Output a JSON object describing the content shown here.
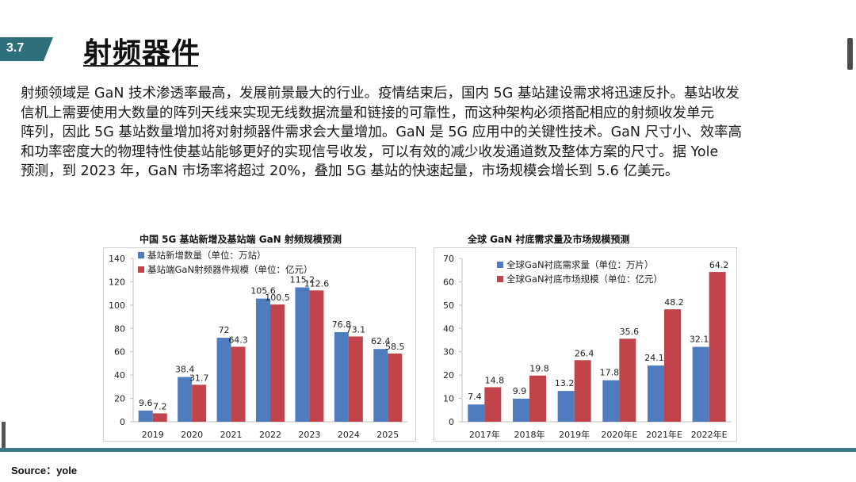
{
  "section_number": "3.7",
  "title": "射频器件",
  "paragraph": [
    "射频领域是 GaN 技术渗透率最高，发展前景最大的行业。疫情结束后，国内 5G 基站建设需求将迅速反扑。基站收发",
    "信机上需要使用大数量的阵列天线来实现无线数据流量和链接的可靠性，而这种架构必须搭配相应的射频收发单元",
    "阵列，因此 5G 基站数量增加将对射频器件需求会大量增加。GaN 是 5G 应用中的关键性技术。GaN 尺寸小、效率高",
    "和功率密度大的物理特性使基站能够更好的实现信号收发，可以有效的减少收发通道数及整体方案的尺寸。据 Yole",
    "预测，到 2023 年，GaN 市场率将超过 20%，叠加 5G 基站的快速起量，市场规模会增长到 5.6 亿美元。"
  ],
  "source": "Source：yole",
  "colors": {
    "blue": "#4f7bbf",
    "red": "#c0444a",
    "accent": "#2e6f7c"
  },
  "chart_data": [
    {
      "type": "bar",
      "title": "中国 5G 基站新增及基站端 GaN 射频规模预测",
      "categories": [
        "2019",
        "2020",
        "2021",
        "2022",
        "2023",
        "2024",
        "2025"
      ],
      "series": [
        {
          "name": "基站新增数量（单位：万站）",
          "values": [
            9.6,
            38.4,
            72,
            105.6,
            115.2,
            76.8,
            62.4
          ],
          "labels": [
            "9.6",
            "38.4",
            "72",
            "105.6",
            "115.2",
            "76.8",
            "62.4"
          ]
        },
        {
          "name": "基站端GaN射频器件规模（单位：亿元）",
          "values": [
            7.2,
            31.7,
            64.3,
            100.5,
            112.6,
            73.1,
            58.5
          ],
          "labels": [
            "7.2",
            "31.7",
            "64.3",
            "100.5",
            "112.6",
            "73.1",
            "58.5"
          ]
        }
      ],
      "ylim": [
        0,
        140
      ],
      "yticks": [
        0,
        20,
        40,
        60,
        80,
        100,
        120,
        140
      ],
      "legend": "top-left",
      "grid": false
    },
    {
      "type": "bar",
      "title": "全球 GaN 衬底需求量及市场规模预测",
      "categories": [
        "2017年",
        "2018年",
        "2019年",
        "2020年E",
        "2021年E",
        "2022年E"
      ],
      "series": [
        {
          "name": "全球GaN衬底需求量（单位：万片）",
          "values": [
            7.4,
            9.9,
            13.2,
            17.8,
            24.1,
            32.1
          ],
          "labels": [
            "7.4",
            "9.9",
            "13.2",
            "17.8",
            "24.1",
            "32.1"
          ]
        },
        {
          "name": "全球GaN衬底市场规模（单位：亿元）",
          "values": [
            14.8,
            19.8,
            26.4,
            35.6,
            48.2,
            64.2
          ],
          "labels": [
            "14.8",
            "19.8",
            "26.4",
            "35.6",
            "48.2",
            "64.2"
          ]
        }
      ],
      "ylim": [
        0,
        70
      ],
      "yticks": [
        0,
        10,
        20,
        30,
        40,
        50,
        60,
        70
      ],
      "legend": "top-left",
      "grid": false
    }
  ]
}
